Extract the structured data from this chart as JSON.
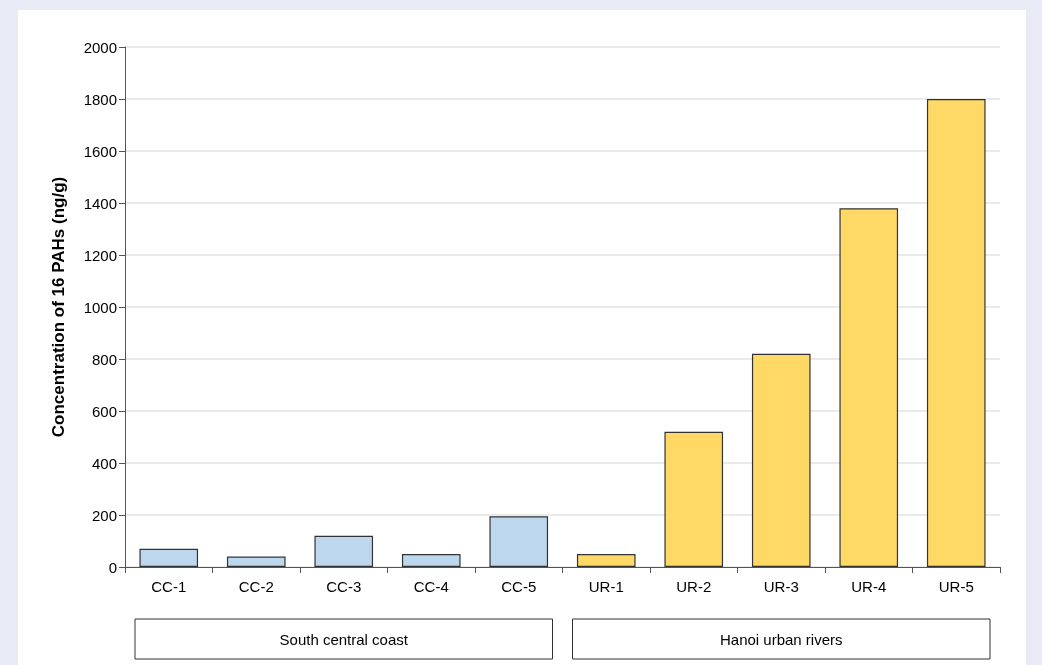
{
  "chart_data": {
    "type": "bar",
    "ylabel": "Concentration of 16 PAHs (ng/g)",
    "categories": [
      "CC-1",
      "CC-2",
      "CC-3",
      "CC-4",
      "CC-5",
      "UR-1",
      "UR-2",
      "UR-3",
      "UR-4",
      "UR-5"
    ],
    "values": [
      70,
      40,
      120,
      50,
      195,
      50,
      520,
      820,
      1380,
      1800
    ],
    "colors": [
      "#bdd7ee",
      "#bdd7ee",
      "#bdd7ee",
      "#bdd7ee",
      "#bdd7ee",
      "#ffd966",
      "#ffd966",
      "#ffd966",
      "#ffd966",
      "#ffd966"
    ],
    "ylim": [
      0,
      2000
    ],
    "yticks": [
      0,
      200,
      400,
      600,
      800,
      1000,
      1200,
      1400,
      1600,
      1800,
      2000
    ],
    "grid": "y",
    "annotations": [
      "South central coast",
      "Hanoi urban rivers"
    ]
  }
}
